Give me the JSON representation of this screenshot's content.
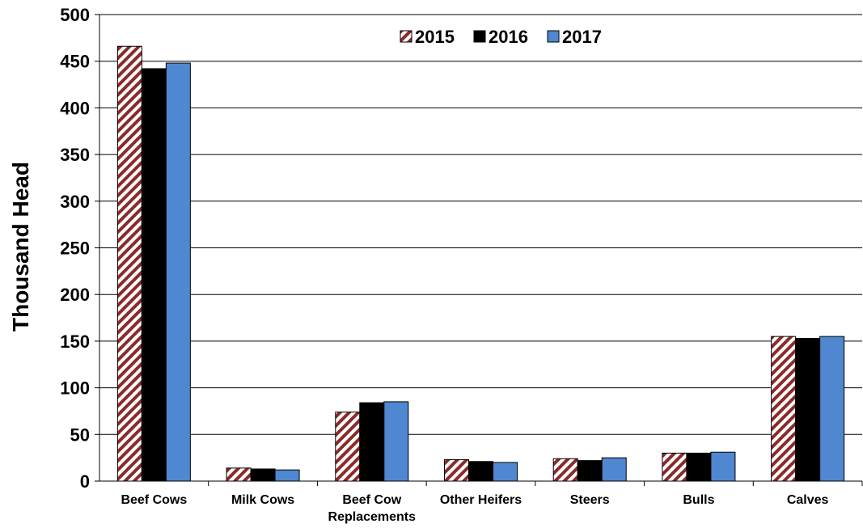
{
  "chart_data": {
    "type": "bar",
    "title": "",
    "xlabel": "",
    "ylabel": "Thousand Head",
    "ylim": [
      0,
      500
    ],
    "yticks": [
      0,
      50,
      100,
      150,
      200,
      250,
      300,
      350,
      400,
      450,
      500
    ],
    "grid": true,
    "legend_position": "top-center",
    "categories": [
      [
        "Beef Cows"
      ],
      [
        "Milk Cows"
      ],
      [
        "Beef Cow",
        "Replacements"
      ],
      [
        "Other Heifers"
      ],
      [
        "Steers"
      ],
      [
        "Bulls"
      ],
      [
        "Calves"
      ]
    ],
    "series": [
      {
        "name": "2015",
        "color": "#8b2a2a",
        "pattern": "diagonal-hatch",
        "values": [
          466,
          14,
          74,
          23,
          24,
          30,
          155
        ]
      },
      {
        "name": "2016",
        "color": "#000000",
        "pattern": "solid",
        "values": [
          442,
          13,
          84,
          21,
          22,
          30,
          153
        ]
      },
      {
        "name": "2017",
        "color": "#4f87d0",
        "pattern": "solid",
        "values": [
          448,
          12,
          85,
          20,
          25,
          31,
          155
        ]
      }
    ]
  }
}
